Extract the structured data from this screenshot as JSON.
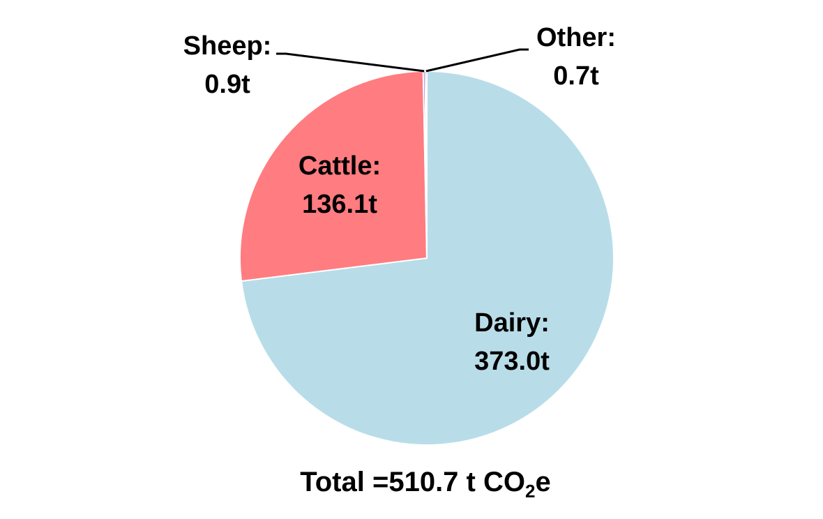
{
  "chart_data": {
    "type": "pie",
    "categories": [
      "Dairy",
      "Cattle",
      "Sheep",
      "Other"
    ],
    "values": [
      373.0,
      136.1,
      0.9,
      0.7
    ],
    "data_labels": [
      {
        "name": "Dairy:",
        "value": "373.0t"
      },
      {
        "name": "Cattle:",
        "value": "136.1t"
      },
      {
        "name": "Sheep:",
        "value": "0.9t"
      },
      {
        "name": "Other:",
        "value": "0.7t"
      }
    ],
    "colors": [
      "#b8dde8",
      "#ff7c80",
      "#9b59b6",
      "#7030a0"
    ],
    "start_angle_deg": 0,
    "direction": "clockwise",
    "total": {
      "prefix": "Total =510.7 t CO",
      "subscript": "2",
      "suffix": "e"
    }
  }
}
